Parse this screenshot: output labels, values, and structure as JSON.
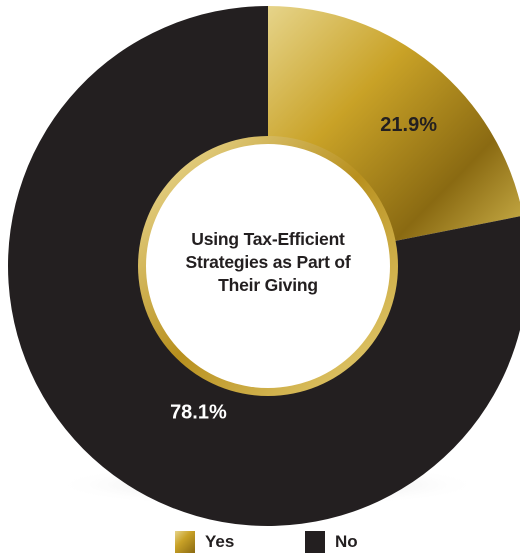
{
  "chart_data": {
    "type": "pie",
    "variant": "donut",
    "center_title_lines": [
      "Using Tax-Efficient",
      "Strategies as  Part of",
      "Their Giving"
    ],
    "categories": [
      "Yes",
      "No"
    ],
    "values": [
      21.9,
      78.1
    ],
    "labels": [
      "21.9%",
      "78.1%"
    ],
    "colors": [
      "#c9a227",
      "#231f20"
    ],
    "label_colors": [
      "#231f20",
      "#ffffff"
    ],
    "legend_position": "bottom"
  },
  "legend": {
    "items": [
      {
        "label": "Yes",
        "color": "#c9a227"
      },
      {
        "label": "No",
        "color": "#231f20"
      }
    ]
  }
}
